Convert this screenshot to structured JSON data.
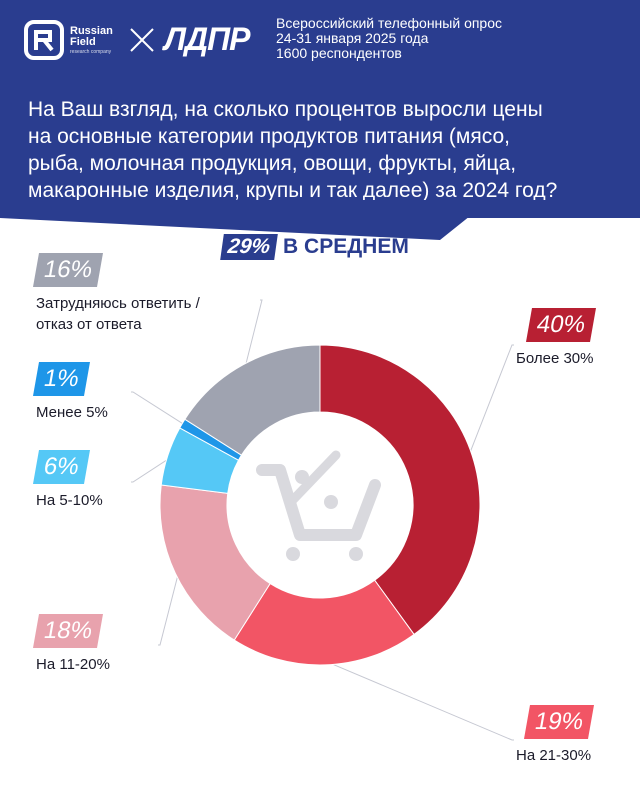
{
  "header": {
    "brand_name_line1": "Russian",
    "brand_name_line2": "Field",
    "brand_sub": "research company",
    "partner": "ЛДПР",
    "survey_lines": [
      "Всероссийский телефонный опрос",
      "24-31 января 2025 года",
      "1600 респондентов"
    ],
    "question_lines": [
      "На Ваш взгляд, на сколько процентов выросли цены",
      "на основные категории продуктов питания (мясо,",
      "рыба, молочная продукция, овощи, фрукты, яйца,",
      "макаронные изделия, крупы и так далее) за 2024 год?"
    ]
  },
  "average": {
    "value": "29%",
    "label": "В СРЕДНЕМ"
  },
  "colors": {
    "header": "#2a3d8f"
  },
  "chart_data": {
    "type": "pie",
    "donut": true,
    "center_icon": "shopping-cart-percent-icon",
    "slices": [
      {
        "label": "Более 30%",
        "value": 40,
        "display": "40%",
        "color": "#b82033"
      },
      {
        "label": "На 21-30%",
        "value": 19,
        "display": "19%",
        "color": "#f25565"
      },
      {
        "label": "На 11-20%",
        "value": 18,
        "display": "18%",
        "color": "#e8a2ad"
      },
      {
        "label": "На 5-10%",
        "value": 6,
        "display": "6%",
        "color": "#55c8f6"
      },
      {
        "label": "Менее 5%",
        "value": 1,
        "display": "1%",
        "color": "#1e96e8"
      },
      {
        "label": "Затрудняюсь ответить / отказ от ответа",
        "value": 16,
        "display": "16%",
        "color": "#9fa3b0"
      }
    ],
    "label_lines": {
      "Затрудняюсь ответить / отказ от ответа": [
        "Затрудняюсь ответить /",
        "отказ от ответа"
      ]
    }
  }
}
